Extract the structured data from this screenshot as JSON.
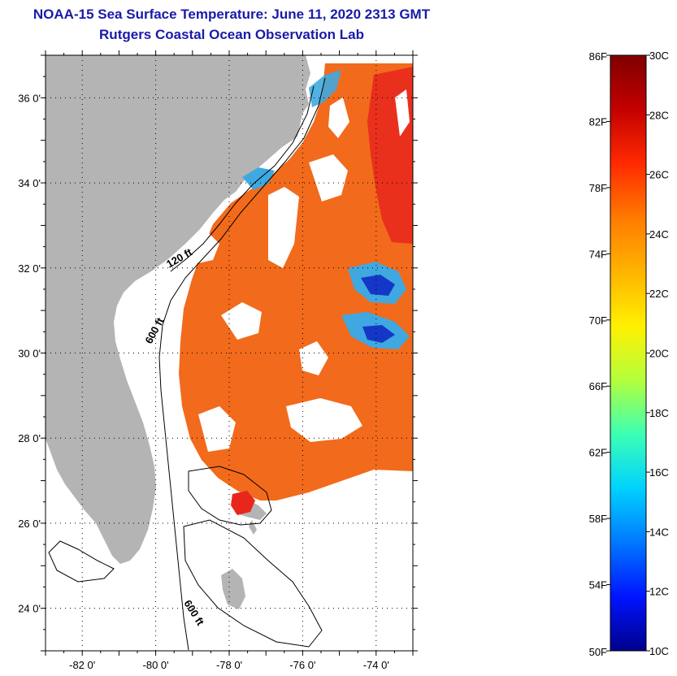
{
  "header": {
    "title": "NOAA-15 Sea Surface Temperature:  June 11, 2020 2313 GMT",
    "subtitle": "Rutgers Coastal Ocean Observation Lab"
  },
  "map": {
    "lat_ticks": [
      "36 0'",
      "34 0'",
      "32 0'",
      "30 0'",
      "28 0'",
      "26 0'",
      "24 0'"
    ],
    "lon_ticks": [
      "-82 0'",
      "-80 0'",
      "-78 0'",
      "-76 0'",
      "-74 0'"
    ],
    "lon_range": [
      -83,
      -73
    ],
    "lat_range": [
      23,
      37
    ],
    "contour_labels": [
      "120 ft",
      "600 ft",
      "600 ft"
    ],
    "colors": {
      "land": "#b4b4b4",
      "warm": "#f26a1b",
      "hot": "#e8261c",
      "cool": "#3fa8e0",
      "cold": "#1437c8",
      "no_data": "#ffffff"
    }
  },
  "colorbar": {
    "f_labels": [
      "86F",
      "82F",
      "78F",
      "74F",
      "70F",
      "66F",
      "62F",
      "58F",
      "54F",
      "50F"
    ],
    "c_labels": [
      "30C",
      "28C",
      "26C",
      "24C",
      "22C",
      "20C",
      "18C",
      "16C",
      "14C",
      "12C",
      "10C"
    ],
    "stops": [
      "#7f0000",
      "#c40000",
      "#ff2a00",
      "#ff7a00",
      "#ffb400",
      "#fff000",
      "#b4ff3c",
      "#3cffb4",
      "#00d2ff",
      "#0078ff",
      "#0014ff",
      "#00008c"
    ]
  }
}
